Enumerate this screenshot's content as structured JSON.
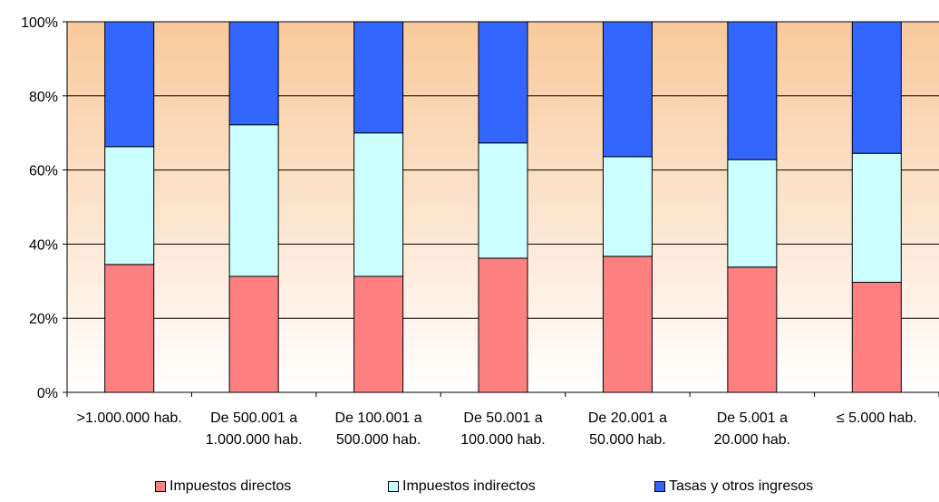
{
  "chart_data": {
    "type": "bar",
    "stacked": true,
    "percent": true,
    "categories": [
      ">1.000.000 hab.",
      "De 500.001 a\n1.000.000 hab.",
      "De 100.001 a\n500.000 hab.",
      "De 50.001 a\n100.000 hab.",
      "De 20.001 a\n50.000 hab.",
      "De 5.001 a\n20.000 hab.",
      "≤ 5.000 hab."
    ],
    "series": [
      {
        "name": "Impuestos directos",
        "color": "#FF8080",
        "values": [
          34.5,
          31.3,
          31.3,
          36.2,
          36.7,
          33.8,
          29.7
        ]
      },
      {
        "name": "Impuestos indirectos",
        "color": "#CCFFFF",
        "values": [
          31.8,
          40.9,
          38.7,
          31.1,
          26.9,
          29.0,
          34.8
        ]
      },
      {
        "name": "Tasas y otros ingresos",
        "color": "#3366FF",
        "values": [
          33.7,
          27.8,
          30.0,
          32.7,
          36.4,
          37.2,
          35.5
        ]
      }
    ],
    "yticks": [
      "0%",
      "20%",
      "40%",
      "60%",
      "80%",
      "100%"
    ],
    "ylim": [
      0,
      100
    ],
    "grid": true,
    "legend_position": "bottom",
    "background": "gradient-orange-to-white"
  }
}
